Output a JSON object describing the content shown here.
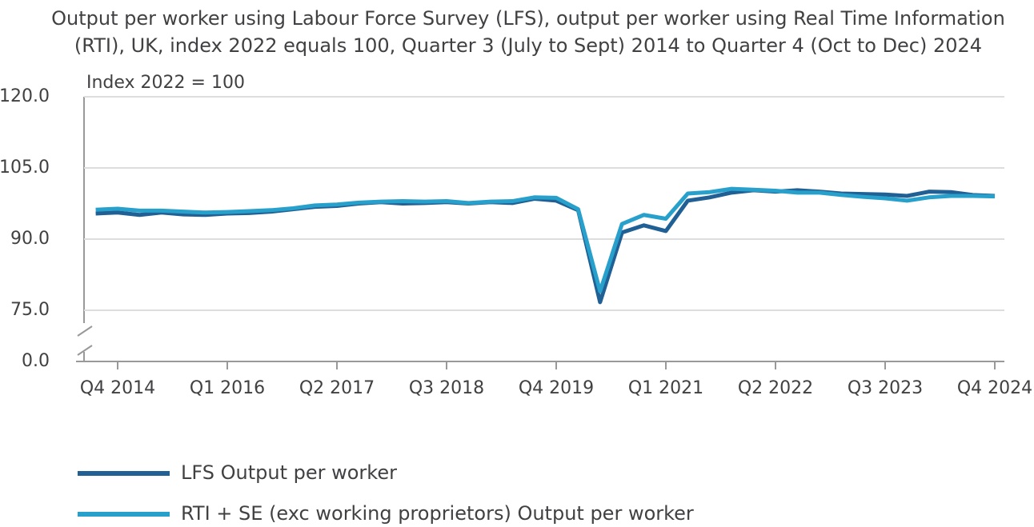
{
  "chart_data": {
    "type": "line",
    "title": "Output per worker using Labour Force Survey (LFS), output per worker using Real Time Information (RTI), UK, index 2022 equals 100, Quarter 3 (July to Sept) 2014 to Quarter 4 (Oct to Dec) 2024",
    "y_axis_label": "Index 2022 = 100",
    "categories": [
      null,
      "Q4 2014",
      null,
      null,
      null,
      null,
      "Q1 2016",
      null,
      null,
      null,
      null,
      "Q2 2017",
      null,
      null,
      null,
      null,
      "Q3 2018",
      null,
      null,
      null,
      null,
      "Q4 2019",
      null,
      null,
      null,
      null,
      "Q1 2021",
      null,
      null,
      null,
      null,
      "Q2 2022",
      null,
      null,
      null,
      null,
      "Q3 2023",
      null,
      null,
      null,
      null,
      "Q4 2024"
    ],
    "series": [
      {
        "name": "LFS Output per worker",
        "color": "#206095",
        "values": [
          95.4,
          95.6,
          95.1,
          95.6,
          95.2,
          95.1,
          95.4,
          95.5,
          95.8,
          96.3,
          96.8,
          97.0,
          97.5,
          97.8,
          97.5,
          97.6,
          97.8,
          97.5,
          97.8,
          97.6,
          98.5,
          98.1,
          96.1,
          76.7,
          91.4,
          92.9,
          91.7,
          98.1,
          98.8,
          99.8,
          100.3,
          100.0,
          100.3,
          100.0,
          99.6,
          99.5,
          99.4,
          99.1,
          100.0,
          99.9,
          99.3,
          99.1
        ]
      },
      {
        "name": "RTI + SE (exc working proprietors) Output per worker",
        "color": "#27a0cc",
        "values": [
          96.2,
          96.4,
          96.0,
          96.0,
          95.8,
          95.6,
          95.7,
          95.9,
          96.1,
          96.5,
          97.1,
          97.3,
          97.7,
          97.9,
          98.0,
          97.9,
          98.0,
          97.6,
          97.9,
          98.0,
          98.8,
          98.7,
          96.3,
          79.0,
          93.2,
          95.1,
          94.3,
          99.6,
          99.9,
          100.6,
          100.4,
          100.2,
          99.8,
          99.8,
          99.3,
          98.9,
          98.6,
          98.1,
          98.8,
          99.1,
          99.1,
          99.0
        ]
      }
    ],
    "ylim": [
      0,
      120
    ],
    "y_break": [
      0,
      75
    ],
    "yticks": [
      {
        "value": 0,
        "label": "0.0"
      },
      {
        "value": 75,
        "label": "75.0"
      },
      {
        "value": 90,
        "label": "90.0"
      },
      {
        "value": 105,
        "label": "105.0"
      },
      {
        "value": 120,
        "label": "120.0"
      }
    ],
    "grid": true,
    "legend": "bottom-left"
  }
}
